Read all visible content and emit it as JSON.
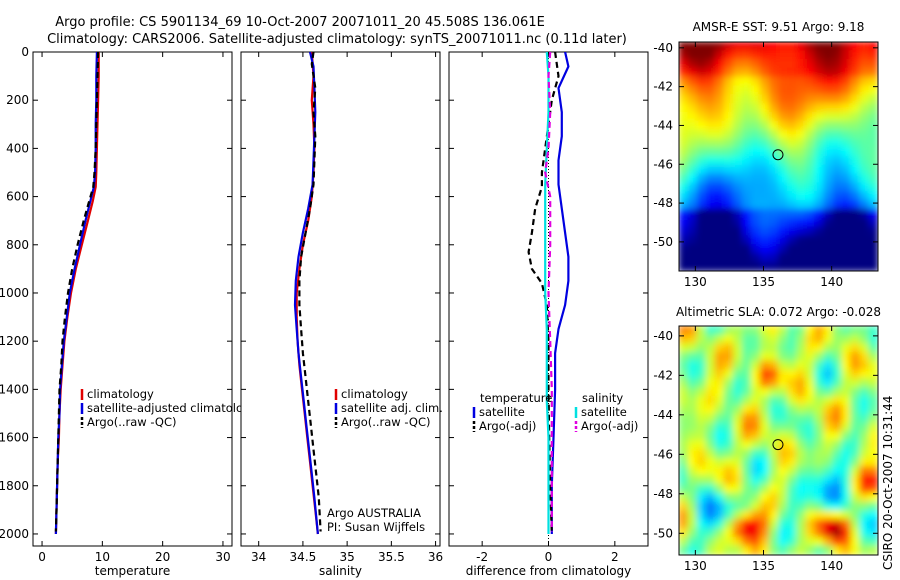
{
  "figure": {
    "title_line1": "Argo profile: CS 5901134_69 10-Oct-2007 20071011_20 45.508S 136.061E",
    "title_line2": "Climatology: CARS2006. Satellite-adjusted climatology: synTS_20071011.nc (0.11d later)",
    "credit": "CSIRO 20-Oct-2007 10:31:44"
  },
  "colors": {
    "climatology": "#e00000",
    "satellite": "#0000e0",
    "argo": "#000000",
    "satellite_diff_sal": "#00e0e0",
    "argo_diff_sal": "#e000e0"
  },
  "chart_data": [
    {
      "type": "line",
      "name": "temperature-profile",
      "xlabel": "temperature",
      "ylabel": "",
      "xlim": [
        -1.5,
        31.5
      ],
      "ylim": [
        2050,
        0
      ],
      "xticks": [
        0,
        10,
        20,
        30
      ],
      "yticks": [
        0,
        200,
        400,
        600,
        800,
        1000,
        1200,
        1400,
        1600,
        1800,
        2000
      ],
      "legend": [
        "climatology",
        "satellite-adjusted climatolog",
        "Argo(..raw -QC)"
      ],
      "series": [
        {
          "name": "climatology",
          "color": "#e00000",
          "style": "solid",
          "points": [
            [
              9.4,
              0
            ],
            [
              9.4,
              100
            ],
            [
              9.3,
              200
            ],
            [
              9.2,
              300
            ],
            [
              9.1,
              400
            ],
            [
              9.0,
              500
            ],
            [
              8.9,
              560
            ],
            [
              8.4,
              620
            ],
            [
              7.6,
              700
            ],
            [
              6.6,
              800
            ],
            [
              5.6,
              900
            ],
            [
              4.8,
              1000
            ],
            [
              4.2,
              1100
            ],
            [
              3.7,
              1200
            ],
            [
              3.4,
              1300
            ],
            [
              3.1,
              1400
            ],
            [
              2.9,
              1500
            ],
            [
              2.8,
              1600
            ],
            [
              2.6,
              1700
            ],
            [
              2.5,
              1800
            ],
            [
              2.4,
              1900
            ],
            [
              2.3,
              2000
            ]
          ]
        },
        {
          "name": "satellite-adjusted climatolog",
          "color": "#0000e0",
          "style": "solid",
          "points": [
            [
              9.1,
              0
            ],
            [
              9.0,
              100
            ],
            [
              9.0,
              200
            ],
            [
              8.9,
              300
            ],
            [
              8.9,
              400
            ],
            [
              8.8,
              500
            ],
            [
              8.6,
              560
            ],
            [
              8.0,
              620
            ],
            [
              7.2,
              700
            ],
            [
              6.3,
              800
            ],
            [
              5.4,
              900
            ],
            [
              4.6,
              1000
            ],
            [
              4.1,
              1100
            ],
            [
              3.6,
              1200
            ],
            [
              3.3,
              1300
            ],
            [
              3.0,
              1400
            ],
            [
              2.9,
              1500
            ],
            [
              2.7,
              1600
            ],
            [
              2.6,
              1700
            ],
            [
              2.5,
              1800
            ],
            [
              2.4,
              1900
            ],
            [
              2.3,
              2000
            ]
          ]
        },
        {
          "name": "Argo(..raw -QC)",
          "color": "#000000",
          "style": "dashed",
          "points": [
            [
              9.3,
              0
            ],
            [
              9.2,
              100
            ],
            [
              9.1,
              200
            ],
            [
              9.0,
              300
            ],
            [
              8.9,
              400
            ],
            [
              8.7,
              500
            ],
            [
              8.5,
              560
            ],
            [
              7.8,
              620
            ],
            [
              6.9,
              700
            ],
            [
              5.9,
              800
            ],
            [
              5.0,
              900
            ],
            [
              4.3,
              1000
            ],
            [
              3.8,
              1100
            ],
            [
              3.4,
              1200
            ],
            [
              3.2,
              1300
            ],
            [
              2.9,
              1400
            ],
            [
              2.8,
              1500
            ],
            [
              2.7,
              1600
            ],
            [
              2.6,
              1700
            ],
            [
              2.5,
              1800
            ],
            [
              2.4,
              1900
            ],
            [
              2.3,
              1990
            ]
          ]
        }
      ]
    },
    {
      "type": "line",
      "name": "salinity-profile",
      "xlabel": "salinity",
      "ylabel": "",
      "xlim": [
        33.8,
        36.05
      ],
      "ylim": [
        2050,
        0
      ],
      "xticks": [
        34,
        34.5,
        35,
        35.5,
        36
      ],
      "legend": [
        "climatology",
        "satellite adj. clim.",
        "Argo(..raw -QC)"
      ],
      "annotation": [
        "Argo AUSTRALIA",
        "PI: Susan Wijffels"
      ],
      "series": [
        {
          "name": "climatology",
          "color": "#e00000",
          "style": "solid",
          "points": [
            [
              34.6,
              0
            ],
            [
              34.62,
              100
            ],
            [
              34.6,
              200
            ],
            [
              34.62,
              300
            ],
            [
              34.63,
              400
            ],
            [
              34.62,
              500
            ],
            [
              34.6,
              600
            ],
            [
              34.56,
              700
            ],
            [
              34.5,
              800
            ],
            [
              34.46,
              900
            ],
            [
              34.43,
              1000
            ],
            [
              34.43,
              1100
            ],
            [
              34.44,
              1200
            ],
            [
              34.46,
              1300
            ],
            [
              34.49,
              1400
            ],
            [
              34.52,
              1500
            ],
            [
              34.55,
              1600
            ],
            [
              34.58,
              1700
            ],
            [
              34.61,
              1800
            ],
            [
              34.64,
              1900
            ],
            [
              34.67,
              2000
            ]
          ]
        },
        {
          "name": "satellite adj. clim.",
          "color": "#0000e0",
          "style": "solid",
          "points": [
            [
              34.58,
              0
            ],
            [
              34.62,
              60
            ],
            [
              34.63,
              150
            ],
            [
              34.64,
              250
            ],
            [
              34.63,
              350
            ],
            [
              34.62,
              450
            ],
            [
              34.61,
              550
            ],
            [
              34.56,
              650
            ],
            [
              34.5,
              750
            ],
            [
              34.45,
              850
            ],
            [
              34.42,
              950
            ],
            [
              34.41,
              1050
            ],
            [
              34.43,
              1150
            ],
            [
              34.45,
              1250
            ],
            [
              34.48,
              1350
            ],
            [
              34.51,
              1450
            ],
            [
              34.54,
              1550
            ],
            [
              34.57,
              1650
            ],
            [
              34.6,
              1750
            ],
            [
              34.63,
              1850
            ],
            [
              34.67,
              2000
            ]
          ]
        },
        {
          "name": "Argo(..raw -QC)",
          "color": "#000000",
          "style": "dashed",
          "points": [
            [
              34.62,
              0
            ],
            [
              34.6,
              50
            ],
            [
              34.64,
              150
            ],
            [
              34.62,
              250
            ],
            [
              34.64,
              350
            ],
            [
              34.63,
              450
            ],
            [
              34.62,
              550
            ],
            [
              34.58,
              650
            ],
            [
              34.53,
              750
            ],
            [
              34.48,
              850
            ],
            [
              34.46,
              950
            ],
            [
              34.46,
              1050
            ],
            [
              34.48,
              1150
            ],
            [
              34.5,
              1250
            ],
            [
              34.53,
              1350
            ],
            [
              34.56,
              1450
            ],
            [
              34.59,
              1550
            ],
            [
              34.62,
              1650
            ],
            [
              34.65,
              1750
            ],
            [
              34.68,
              1850
            ],
            [
              34.7,
              1990
            ]
          ]
        }
      ]
    },
    {
      "type": "line",
      "name": "difference-profile",
      "xlabel": "difference from climatology",
      "ylabel": "",
      "xlim": [
        -3,
        3
      ],
      "ylim": [
        2050,
        0
      ],
      "xticks": [
        -2,
        0,
        2
      ],
      "legend_left_heading": "temperature",
      "legend_right_heading": "salinity",
      "legend_left": [
        "satellite",
        "Argo(-adj)"
      ],
      "legend_right": [
        "satellite",
        "Argo(-adj)"
      ],
      "series": [
        {
          "name": "temperature satellite",
          "color": "#0000e0",
          "style": "solid",
          "points": [
            [
              0.5,
              0
            ],
            [
              0.6,
              60
            ],
            [
              0.3,
              150
            ],
            [
              0.4,
              250
            ],
            [
              0.4,
              350
            ],
            [
              0.3,
              450
            ],
            [
              0.3,
              550
            ],
            [
              0.4,
              650
            ],
            [
              0.5,
              750
            ],
            [
              0.6,
              850
            ],
            [
              0.6,
              950
            ],
            [
              0.5,
              1050
            ],
            [
              0.3,
              1150
            ],
            [
              0.2,
              1250
            ],
            [
              0.2,
              1400
            ],
            [
              0.15,
              1600
            ],
            [
              0.1,
              1800
            ],
            [
              0.1,
              2000
            ]
          ]
        },
        {
          "name": "temperature Argo(-adj)",
          "color": "#000000",
          "style": "dashed",
          "points": [
            [
              0.2,
              0
            ],
            [
              0.3,
              100
            ],
            [
              0.1,
              200
            ],
            [
              0.0,
              300
            ],
            [
              -0.1,
              400
            ],
            [
              -0.2,
              500
            ],
            [
              -0.2,
              560
            ],
            [
              -0.4,
              650
            ],
            [
              -0.5,
              750
            ],
            [
              -0.6,
              830
            ],
            [
              -0.5,
              900
            ],
            [
              -0.2,
              960
            ],
            [
              -0.05,
              1050
            ],
            [
              0.0,
              1200
            ],
            [
              0.0,
              1400
            ],
            [
              0.02,
              1600
            ],
            [
              0.05,
              1800
            ],
            [
              0.1,
              2000
            ]
          ]
        },
        {
          "name": "salinity satellite",
          "color": "#00e0e0",
          "style": "solid",
          "points": [
            [
              -0.05,
              0
            ],
            [
              0.0,
              100
            ],
            [
              0.0,
              250
            ],
            [
              -0.05,
              400
            ],
            [
              -0.1,
              550
            ],
            [
              -0.1,
              700
            ],
            [
              -0.1,
              850
            ],
            [
              -0.1,
              1000
            ],
            [
              -0.05,
              1150
            ],
            [
              -0.05,
              1300
            ],
            [
              -0.05,
              1450
            ],
            [
              0.0,
              1600
            ],
            [
              0.0,
              1800
            ],
            [
              0.0,
              2000
            ]
          ]
        },
        {
          "name": "salinity Argo(-adj)",
          "color": "#e000e0",
          "style": "dashed",
          "points": [
            [
              0.05,
              0
            ],
            [
              0.0,
              100
            ],
            [
              0.05,
              250
            ],
            [
              0.0,
              400
            ],
            [
              -0.1,
              500
            ],
            [
              0.05,
              600
            ],
            [
              0.05,
              800
            ],
            [
              0.0,
              1000
            ],
            [
              0.05,
              1200
            ],
            [
              0.1,
              1400
            ],
            [
              0.1,
              1600
            ],
            [
              0.1,
              1800
            ],
            [
              0.1,
              1990
            ]
          ]
        }
      ]
    },
    {
      "type": "heatmap",
      "name": "amsr-e-sst-map",
      "title": "AMSR-E SST: 9.51  Argo: 9.18",
      "xlim": [
        128.8,
        143.4
      ],
      "ylim": [
        -51.5,
        -39.7
      ],
      "xticks": [
        130,
        135,
        140
      ],
      "yticks": [
        -40,
        -42,
        -44,
        -46,
        -48,
        -50
      ],
      "marker": [
        136.061,
        -45.508
      ]
    },
    {
      "type": "heatmap",
      "name": "altimetric-sla-map",
      "title": "Altimetric SLA: 0.072  Argo: -0.028",
      "xlim": [
        128.8,
        143.4
      ],
      "ylim": [
        -51.1,
        -39.5
      ],
      "xticks": [
        130,
        135,
        140
      ],
      "yticks": [
        -40,
        -42,
        -44,
        -46,
        -48,
        -50
      ],
      "marker": [
        136.061,
        -45.508
      ]
    }
  ]
}
